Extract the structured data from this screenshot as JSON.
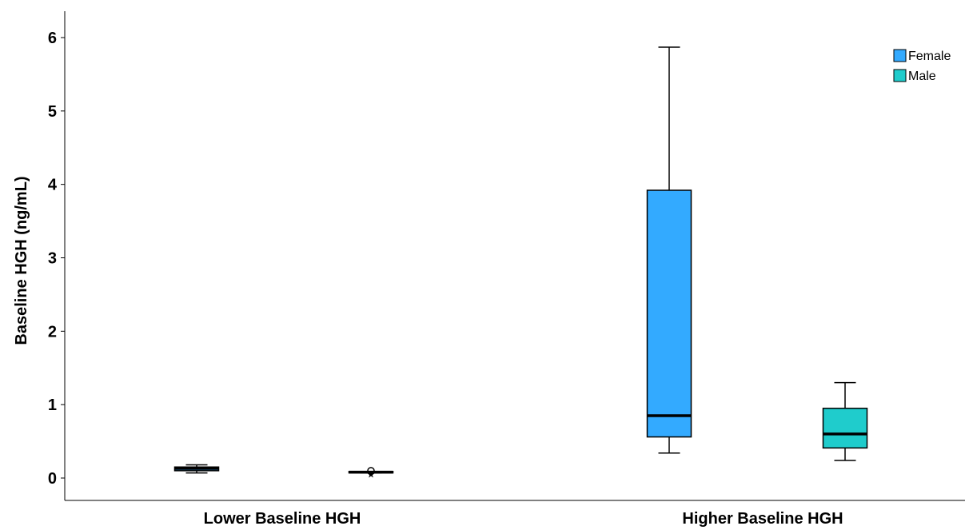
{
  "chart_data": {
    "type": "box",
    "ylabel": "Baseline HGH (ng/mL)",
    "xlabel": "",
    "ylim": [
      -0.3,
      6.4
    ],
    "yticks": [
      0,
      1,
      2,
      3,
      4,
      5,
      6
    ],
    "categories": [
      "Lower Baseline HGH",
      "Higher Baseline HGH"
    ],
    "legend_position": "top-right",
    "grid": false,
    "series": [
      {
        "name": "Female",
        "color": "#33aaff",
        "boxes": [
          {
            "whisker_low": 0.07,
            "q1": 0.1,
            "median": 0.13,
            "q3": 0.15,
            "whisker_high": 0.18
          },
          {
            "whisker_low": 0.34,
            "q1": 0.56,
            "median": 0.85,
            "q3": 3.92,
            "whisker_high": 5.87
          }
        ]
      },
      {
        "name": "Male",
        "color": "#1fcccc",
        "boxes": [
          {
            "whisker_low": 0.07,
            "q1": 0.07,
            "median": 0.08,
            "q3": 0.09,
            "whisker_high": 0.09,
            "outliers": [
              0.1
            ],
            "extremes": [
              0.06
            ]
          },
          {
            "whisker_low": 0.24,
            "q1": 0.41,
            "median": 0.6,
            "q3": 0.95,
            "whisker_high": 1.3
          }
        ]
      }
    ]
  }
}
